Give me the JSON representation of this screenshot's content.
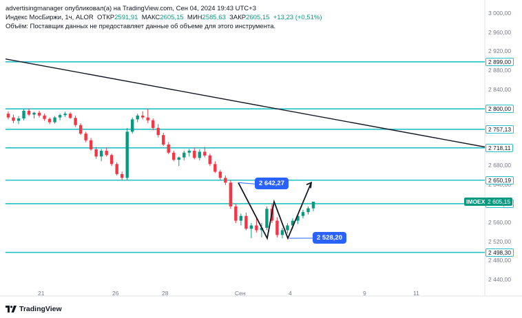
{
  "header": {
    "published_line": "advertisingmanager опубликовал(а) на TradingView.com, Сен 04, 2024 19:43 UTC+3",
    "symbol_title": "Индекс МосБиржи, 1ч, ALOR",
    "ohlc": [
      {
        "label": "ОТКР",
        "value": "2591,91"
      },
      {
        "label": "МАКС",
        "value": "2605,15"
      },
      {
        "label": "МИН",
        "value": "2585,63"
      },
      {
        "label": "ЗАКР",
        "value": "2605,15"
      }
    ],
    "change": "+13,23 (+0,51%)",
    "volume_note": "Объём: Поставщик данных не предоставляет данные об объеме для этого инструмента."
  },
  "colors": {
    "up": "#089981",
    "down": "#f23645",
    "level_line": "#22c1c3",
    "trendline": "#131722",
    "callout": "#2962ff",
    "axis_text": "#787b86"
  },
  "price_axis": {
    "ticks": [
      "3 000,00",
      "2 960,00",
      "2 920,00",
      "2 880,00",
      "2 840,00",
      "2 680,00",
      "2 640,00",
      "2 560,00",
      "2 520,00",
      "2 480,00",
      "2 440,00"
    ]
  },
  "level_badges": [
    {
      "id": "l2899",
      "value": 2899.0,
      "label": "2 899,00"
    },
    {
      "id": "l2800",
      "value": 2800.0,
      "label": "2 800,00"
    },
    {
      "id": "l2757",
      "value": 2757.13,
      "label": "2 757,13"
    },
    {
      "id": "l2718",
      "value": 2718.11,
      "label": "2 718,11"
    },
    {
      "id": "l2650",
      "value": 2650.19,
      "label": "2 650,19"
    },
    {
      "id": "l2600",
      "value": 2600.71,
      "label": "2 600,71"
    },
    {
      "id": "l2498",
      "value": 2498.3,
      "label": "2 498,30"
    }
  ],
  "symbol_badge": {
    "name": "IMOEX",
    "value": 2605.15,
    "label": "2 605,15"
  },
  "time_axis": {
    "labels": [
      "21",
      "26",
      "28",
      "Сен",
      "4",
      "9",
      "11"
    ]
  },
  "callouts": [
    {
      "id": "peak",
      "value": 2642.27,
      "label": "2 642,27"
    },
    {
      "id": "trough",
      "value": 2528.2,
      "label": "2 528,20"
    }
  ],
  "branding": {
    "logo_text": "TradingView",
    "logo_icon": "tradingview-logo-icon"
  },
  "chart_data": {
    "type": "candlestick",
    "title": "Индекс МосБиржи, 1ч, ALOR",
    "ylim": [
      2420,
      3005
    ],
    "horizontal_levels": [
      2899.0,
      2800.0,
      2757.13,
      2718.11,
      2650.19,
      2600.71,
      2498.3
    ],
    "current_price": 2605.15,
    "annotations": [
      {
        "type": "price_label",
        "value": 2642.27
      },
      {
        "type": "price_label",
        "value": 2528.2
      },
      {
        "type": "trendline",
        "from_price": 2905,
        "to_price": 2720
      },
      {
        "type": "w_pattern_projection",
        "points": [
          2645,
          2528,
          2605,
          2528,
          2645
        ]
      }
    ],
    "candles": [
      [
        2790,
        2795,
        2778,
        2782
      ],
      [
        2782,
        2788,
        2770,
        2775
      ],
      [
        2775,
        2785,
        2768,
        2780
      ],
      [
        2780,
        2800,
        2776,
        2796
      ],
      [
        2796,
        2801,
        2785,
        2788
      ],
      [
        2788,
        2794,
        2780,
        2792
      ],
      [
        2792,
        2796,
        2782,
        2786
      ],
      [
        2786,
        2790,
        2775,
        2779
      ],
      [
        2779,
        2782,
        2768,
        2772
      ],
      [
        2772,
        2785,
        2769,
        2782
      ],
      [
        2782,
        2790,
        2776,
        2787
      ],
      [
        2787,
        2794,
        2783,
        2790
      ],
      [
        2790,
        2793,
        2779,
        2781
      ],
      [
        2781,
        2786,
        2762,
        2766
      ],
      [
        2766,
        2770,
        2745,
        2748
      ],
      [
        2748,
        2752,
        2730,
        2734
      ],
      [
        2734,
        2739,
        2712,
        2715
      ],
      [
        2715,
        2720,
        2695,
        2700
      ],
      [
        2700,
        2716,
        2690,
        2712
      ],
      [
        2712,
        2718,
        2700,
        2703
      ],
      [
        2703,
        2706,
        2680,
        2684
      ],
      [
        2684,
        2688,
        2660,
        2663
      ],
      [
        2663,
        2668,
        2650,
        2655
      ],
      [
        2655,
        2760,
        2650,
        2752
      ],
      [
        2752,
        2782,
        2748,
        2778
      ],
      [
        2778,
        2790,
        2772,
        2786
      ],
      [
        2786,
        2795,
        2778,
        2782
      ],
      [
        2782,
        2800,
        2770,
        2776
      ],
      [
        2776,
        2780,
        2755,
        2760
      ],
      [
        2760,
        2768,
        2740,
        2745
      ],
      [
        2745,
        2750,
        2722,
        2725
      ],
      [
        2725,
        2730,
        2705,
        2708
      ],
      [
        2708,
        2712,
        2690,
        2693
      ],
      [
        2693,
        2700,
        2680,
        2698
      ],
      [
        2698,
        2712,
        2692,
        2708
      ],
      [
        2708,
        2716,
        2700,
        2712
      ],
      [
        2712,
        2718,
        2694,
        2697
      ],
      [
        2697,
        2715,
        2692,
        2710
      ],
      [
        2710,
        2720,
        2698,
        2702
      ],
      [
        2702,
        2706,
        2680,
        2684
      ],
      [
        2684,
        2690,
        2665,
        2668
      ],
      [
        2668,
        2672,
        2650,
        2655
      ],
      [
        2655,
        2660,
        2640,
        2645
      ],
      [
        2645,
        2650,
        2590,
        2595
      ],
      [
        2595,
        2600,
        2560,
        2565
      ],
      [
        2565,
        2580,
        2555,
        2575
      ],
      [
        2575,
        2582,
        2545,
        2548
      ],
      [
        2548,
        2560,
        2528,
        2555
      ],
      [
        2555,
        2570,
        2540,
        2545
      ],
      [
        2545,
        2560,
        2530,
        2550
      ],
      [
        2550,
        2595,
        2545,
        2590
      ],
      [
        2590,
        2600,
        2560,
        2565
      ],
      [
        2565,
        2572,
        2530,
        2535
      ],
      [
        2535,
        2550,
        2528,
        2545
      ],
      [
        2545,
        2560,
        2538,
        2555
      ],
      [
        2555,
        2570,
        2548,
        2565
      ],
      [
        2565,
        2580,
        2558,
        2575
      ],
      [
        2575,
        2588,
        2570,
        2583
      ],
      [
        2583,
        2595,
        2578,
        2591
      ],
      [
        2591,
        2605,
        2585,
        2605
      ]
    ]
  }
}
